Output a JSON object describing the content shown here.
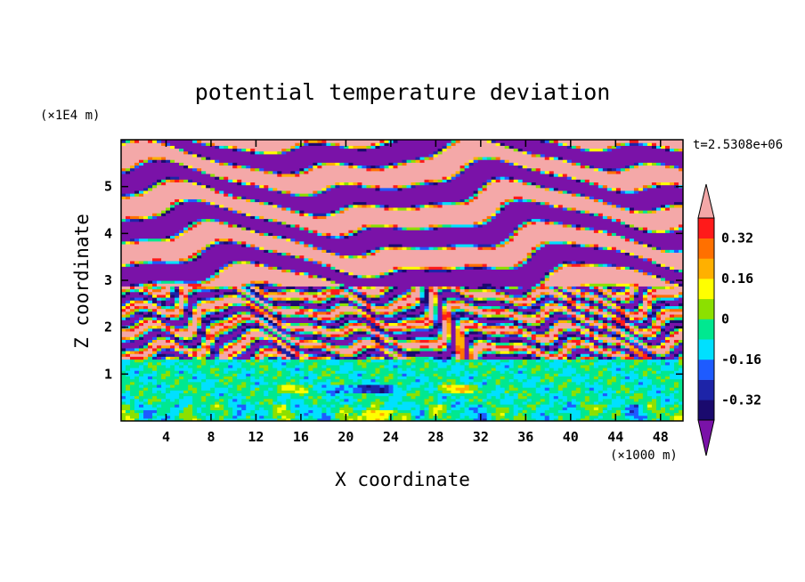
{
  "chart_data": {
    "type": "heatmap",
    "title": "potential temperature deviation",
    "xlabel": "X coordinate",
    "ylabel": "Z coordinate",
    "x_unit": "(×1000 m)",
    "y_unit": "(×1E4 m)",
    "time_label": "t=2.5308e+06",
    "xlim": [
      0,
      50
    ],
    "ylim": [
      0,
      6
    ],
    "x_ticks": [
      4,
      8,
      12,
      16,
      20,
      24,
      28,
      32,
      36,
      40,
      44,
      48
    ],
    "y_ticks": [
      1,
      2,
      3,
      4,
      5
    ],
    "colorbar": {
      "levels": [
        -0.4,
        -0.32,
        -0.24,
        -0.16,
        -0.08,
        0,
        0.08,
        0.16,
        0.24,
        0.32,
        0.4
      ],
      "tick_labels": [
        "0.32",
        "0.16",
        "0",
        "-0.16",
        "-0.32"
      ],
      "tick_values": [
        0.32,
        0.16,
        0,
        -0.16,
        -0.32
      ],
      "colors": [
        "#1a0a6e",
        "#1d24a8",
        "#1e5bff",
        "#00e0ff",
        "#00e890",
        "#8ce000",
        "#ffff00",
        "#ffb000",
        "#ff7000",
        "#ff1a1a"
      ],
      "over_color": "#f4a8a8",
      "under_color": "#7a12a8"
    },
    "bands": [
      {
        "z": [
          0.0,
          1.3
        ],
        "value": -0.05,
        "desc": "low-level noisy near-zero layer"
      },
      {
        "z": [
          1.3,
          2.9
        ],
        "value": 0,
        "desc": "strongly mixed layer with alternating positive and negative filaments"
      },
      {
        "z": [
          2.9,
          6.0
        ],
        "value": 0,
        "desc": "large-amplitude alternating layers beyond colorbar range"
      }
    ]
  }
}
